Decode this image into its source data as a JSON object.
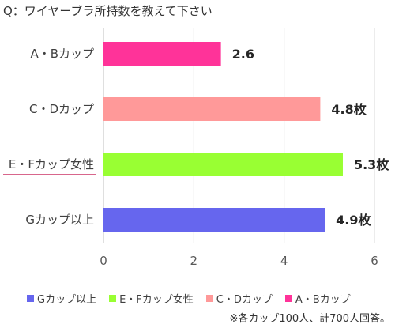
{
  "question": "Q：ワイヤーブラ所持数を教えて下さい",
  "chart_data": {
    "type": "bar",
    "orientation": "horizontal",
    "categories": [
      "A・Bカップ",
      "C・Dカップ",
      "E・Fカップ女性",
      "Gカップ以上"
    ],
    "values": [
      2.6,
      4.8,
      5.3,
      4.9
    ],
    "value_labels": [
      "2.6",
      "4.8枚",
      "5.3枚",
      "4.9枚"
    ],
    "colors": [
      "#ff3399",
      "#ff9999",
      "#99ff33",
      "#6666ee"
    ],
    "highlight_category": "E・Fカップ女性",
    "highlight_color": "#cc3366",
    "xlim": [
      0,
      6
    ],
    "xticks": [
      "0",
      "2",
      "4",
      "6"
    ],
    "grid": true,
    "legend_position": "bottom"
  },
  "legend": [
    {
      "label": "Gカップ以上",
      "color": "#6666ee"
    },
    {
      "label": "E・Fカップ女性",
      "color": "#99ff33"
    },
    {
      "label": "C・Dカップ",
      "color": "#ff9999"
    },
    {
      "label": "A・Bカップ",
      "color": "#ff3399"
    }
  ],
  "note": "※各カップ100人、計700人回答。"
}
